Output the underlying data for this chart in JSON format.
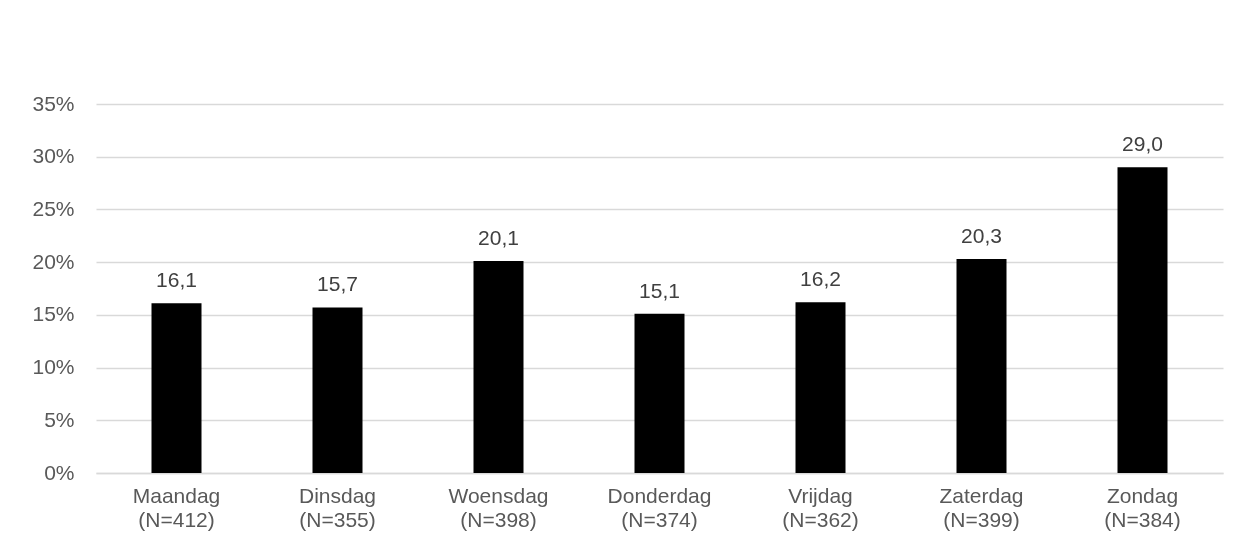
{
  "chart_data": {
    "type": "bar",
    "categories": [
      "Maandag\n(N=412)",
      "Dinsdag\n(N=355)",
      "Woensdag\n(N=398)",
      "Donderdag\n(N=374)",
      "Vrijdag\n(N=362)",
      "Zaterdag\n(N=399)",
      "Zondag\n(N=384)"
    ],
    "values": [
      16.1,
      15.7,
      20.1,
      15.1,
      16.2,
      20.3,
      29.0
    ],
    "color": "#000000",
    "value_labels": [
      "16,1",
      "15,7",
      "20,1",
      "15,1",
      "16,2",
      "20,3",
      "29,0"
    ],
    "ylim": [
      0,
      35
    ],
    "yticks": [
      {
        "value": 0,
        "label": "0%"
      },
      {
        "value": 5,
        "label": "5%"
      },
      {
        "value": 10,
        "label": "10%"
      },
      {
        "value": 15,
        "label": "15%"
      },
      {
        "value": 20,
        "label": "20%"
      },
      {
        "value": 25,
        "label": "25%"
      },
      {
        "value": 30,
        "label": "30%"
      },
      {
        "value": 35,
        "label": "35%"
      }
    ],
    "grid": "y"
  }
}
